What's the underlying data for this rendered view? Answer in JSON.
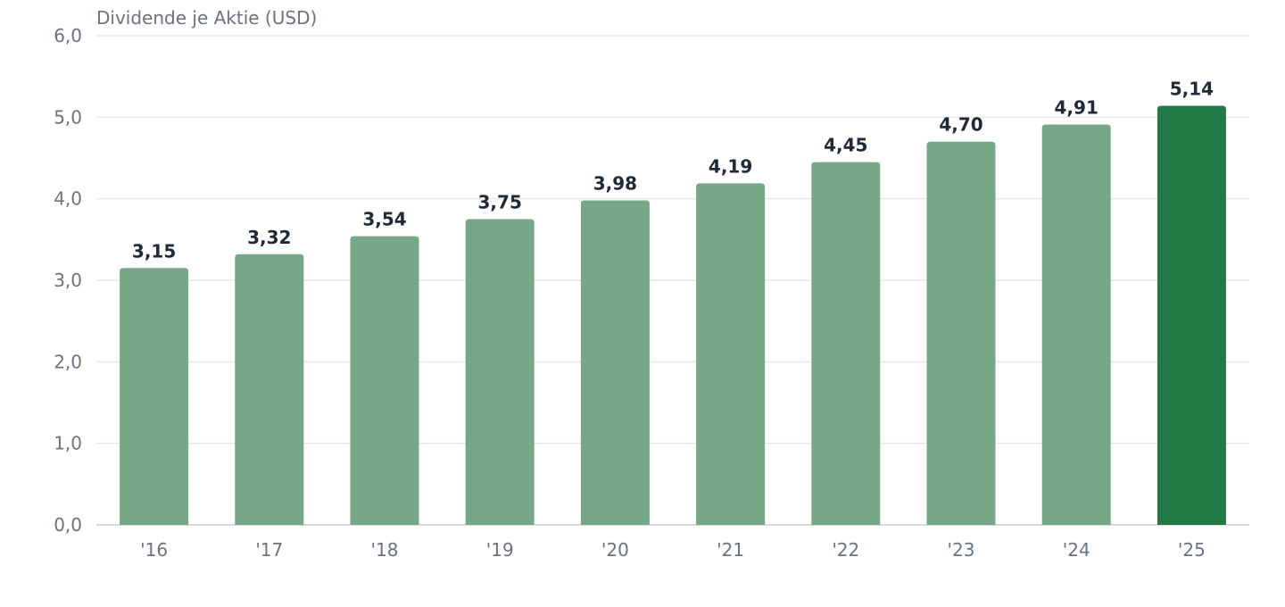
{
  "chart_data": {
    "type": "bar",
    "ylabel": "Dividende je Aktie (USD)",
    "categories": [
      "'16",
      "'17",
      "'18",
      "'19",
      "'20",
      "'21",
      "'22",
      "'23",
      "'24",
      "'25"
    ],
    "values": [
      3.15,
      3.32,
      3.54,
      3.75,
      3.98,
      4.19,
      4.45,
      4.7,
      4.91,
      5.14
    ],
    "value_labels": [
      "3,15",
      "3,32",
      "3,54",
      "3,75",
      "3,98",
      "4,19",
      "4,45",
      "4,70",
      "4,91",
      "5,14"
    ],
    "ylim": [
      0,
      6
    ],
    "yticks": [
      0,
      1,
      2,
      3,
      4,
      5,
      6
    ],
    "ytick_labels": [
      "0,0",
      "1,0",
      "2,0",
      "3,0",
      "4,0",
      "5,0",
      "6,0"
    ],
    "grid": true,
    "colors": {
      "bar": "#76a787",
      "highlight": "#217a45"
    },
    "highlight_category": "'25"
  }
}
